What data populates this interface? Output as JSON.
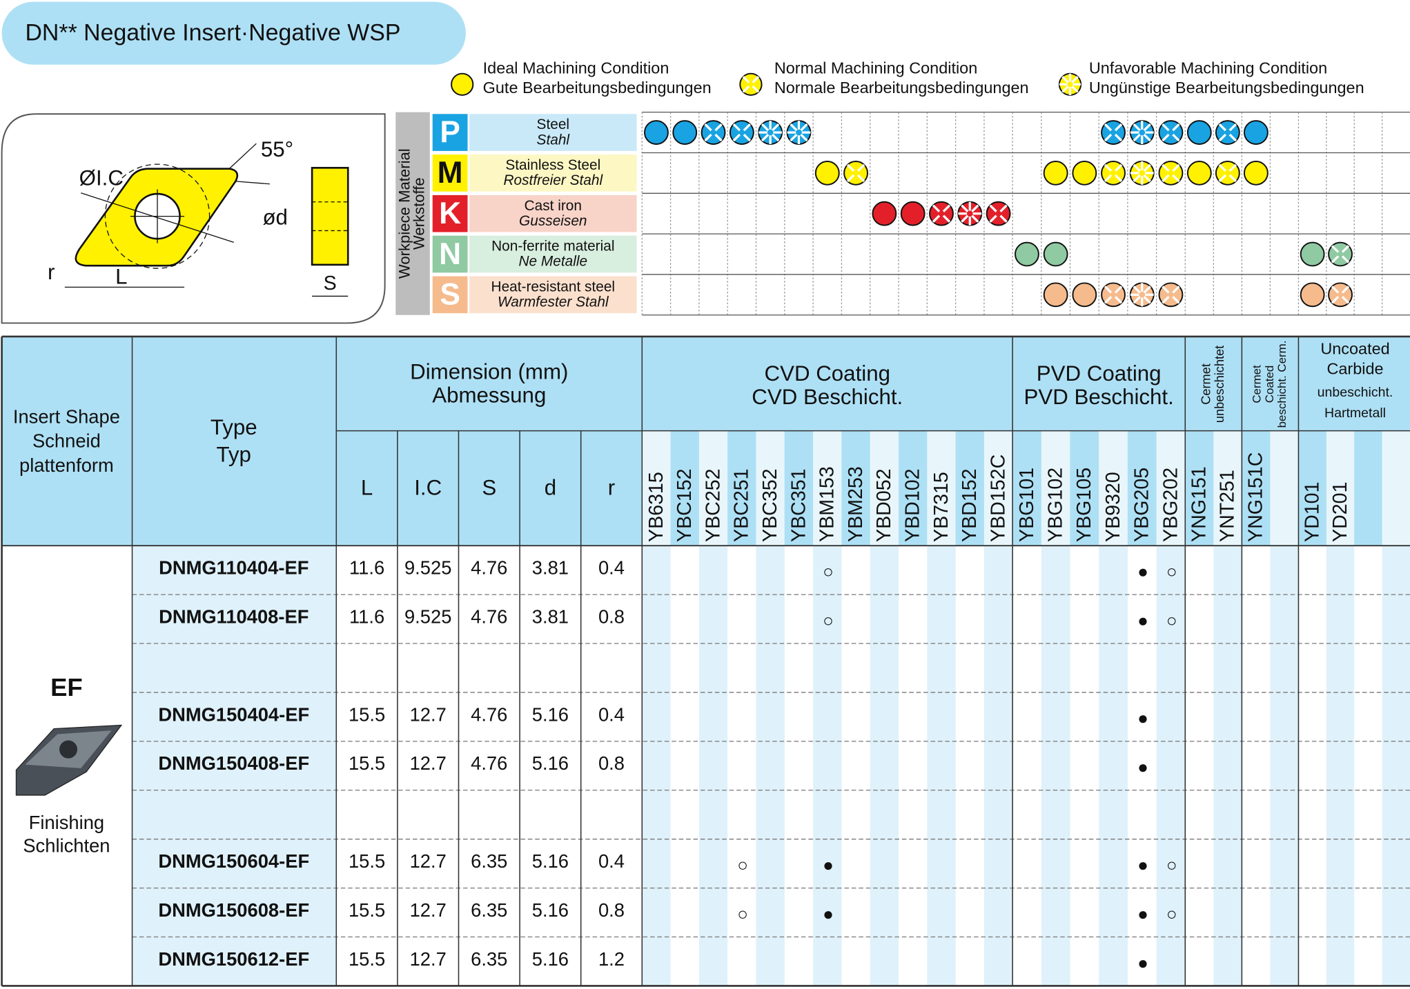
{
  "title": "DN** Negative Insert·Negative WSP",
  "legend": [
    {
      "condition": "ideal",
      "en": "Ideal Machining Condition",
      "de": "Gute Bearbeitungsbedingungen"
    },
    {
      "condition": "normal",
      "en": "Normal Machining Condition",
      "de": "Normale Bearbeitungsbedingungen"
    },
    {
      "condition": "unfavorable",
      "en": "Unfavorable Machining Condition",
      "de": "Ungünstige Bearbeitungsbedingungen"
    }
  ],
  "diagram": {
    "ic": "ØI.C",
    "angle": "55°",
    "d": "ød",
    "r": "r",
    "L": "L",
    "S": "S"
  },
  "material_axis": [
    "Workpiece Material",
    "Werkstoffe"
  ],
  "materials": [
    {
      "letter": "P",
      "en": "Steel",
      "de": "Stahl",
      "color": "#1aa3e2",
      "bg": "#c9e9f8",
      "conditions": [
        "ideal",
        "ideal",
        "normal",
        "normal",
        "unfavorable",
        "unfavorable",
        null,
        null,
        null,
        null,
        null,
        null,
        null,
        null,
        null,
        null,
        "normal",
        "unfavorable",
        "normal",
        "ideal",
        "normal",
        "ideal",
        null,
        null,
        null,
        null,
        null
      ]
    },
    {
      "letter": "M",
      "en": "Stainless Steel",
      "de": "Rostfreier Stahl",
      "color": "#fff100",
      "bg": "#fdf7c4",
      "conditions": [
        null,
        null,
        null,
        null,
        null,
        null,
        "ideal",
        "normal",
        null,
        null,
        null,
        null,
        null,
        null,
        "ideal",
        "ideal",
        "normal",
        "unfavorable",
        "normal",
        "ideal",
        "normal",
        "ideal",
        null,
        null,
        null,
        null,
        null
      ]
    },
    {
      "letter": "K",
      "en": "Cast iron",
      "de": "Gusseisen",
      "color": "#e3202a",
      "bg": "#f8d3c8",
      "conditions": [
        null,
        null,
        null,
        null,
        null,
        null,
        null,
        null,
        "ideal",
        "ideal",
        "normal",
        "unfavorable",
        "normal",
        null,
        null,
        null,
        null,
        null,
        null,
        null,
        null,
        null,
        null,
        null,
        null,
        null,
        null
      ]
    },
    {
      "letter": "N",
      "en": "Non-ferrite material",
      "de": "Ne Metalle",
      "color": "#8fcaa2",
      "bg": "#d8eedf",
      "conditions": [
        null,
        null,
        null,
        null,
        null,
        null,
        null,
        null,
        null,
        null,
        null,
        null,
        null,
        "ideal",
        "ideal",
        null,
        null,
        null,
        null,
        null,
        null,
        null,
        null,
        "ideal",
        "normal",
        null,
        null
      ]
    },
    {
      "letter": "S",
      "en": "Heat-resistant steel",
      "de": "Warmfester Stahl",
      "color": "#f6bb8d",
      "bg": "#fbe0cd",
      "conditions": [
        null,
        null,
        null,
        null,
        null,
        null,
        null,
        null,
        null,
        null,
        null,
        null,
        null,
        null,
        "ideal",
        "ideal",
        "normal",
        "unfavorable",
        "normal",
        null,
        null,
        null,
        null,
        "ideal",
        "normal",
        null,
        null
      ]
    }
  ],
  "table": {
    "headers": {
      "shape": [
        "Insert Shape",
        "Schneid",
        "plattenform"
      ],
      "type": [
        "Type",
        "Typ"
      ],
      "dimension": [
        "Dimension (mm)",
        "Abmessung"
      ],
      "dims": [
        "L",
        "I.C",
        "S",
        "d",
        "r"
      ],
      "groups": [
        [
          "CVD Coating",
          "CVD Beschicht."
        ],
        [
          "PVD Coating",
          "PVD Beschicht."
        ],
        [
          "Cermet",
          "unbeschichtet"
        ],
        [
          "Cermet",
          "Coated",
          "beschicht. Cerm."
        ],
        [
          "Uncoated",
          "Carbide",
          "unbeschicht.",
          "Hartmetall"
        ]
      ]
    },
    "grades": [
      "YB6315",
      "YBC152",
      "YBC252",
      "YBC251",
      "YBC352",
      "YBC351",
      "YBM153",
      "YBM253",
      "YBD052",
      "YBD102",
      "YB7315",
      "YBD152",
      "YBD152C",
      "YBG101",
      "YBG102",
      "YBG105",
      "YB9320",
      "YBG205",
      "YBG202",
      "YNG151",
      "YNT251",
      "YNG151C",
      null,
      "YD101",
      "YD201",
      null,
      null
    ],
    "section": {
      "code": "EF",
      "en": "Finishing",
      "de": "Schlichten"
    },
    "rows": [
      {
        "type": "DNMG110404-EF",
        "dims": [
          11.6,
          9.525,
          4.76,
          3.81,
          0.4
        ],
        "marks": [
          null,
          null,
          null,
          null,
          null,
          null,
          "○",
          null,
          null,
          null,
          null,
          null,
          null,
          null,
          null,
          null,
          null,
          "●",
          "○",
          null,
          null,
          null,
          null,
          null,
          null,
          null,
          null
        ]
      },
      {
        "type": "DNMG110408-EF",
        "dims": [
          11.6,
          9.525,
          4.76,
          3.81,
          0.8
        ],
        "marks": [
          null,
          null,
          null,
          null,
          null,
          null,
          "○",
          null,
          null,
          null,
          null,
          null,
          null,
          null,
          null,
          null,
          null,
          "●",
          "○",
          null,
          null,
          null,
          null,
          null,
          null,
          null,
          null
        ]
      },
      null,
      {
        "type": "DNMG150404-EF",
        "dims": [
          15.5,
          12.7,
          4.76,
          5.16,
          0.4
        ],
        "marks": [
          null,
          null,
          null,
          null,
          null,
          null,
          null,
          null,
          null,
          null,
          null,
          null,
          null,
          null,
          null,
          null,
          null,
          "●",
          null,
          null,
          null,
          null,
          null,
          null,
          null,
          null,
          null
        ]
      },
      {
        "type": "DNMG150408-EF",
        "dims": [
          15.5,
          12.7,
          4.76,
          5.16,
          0.8
        ],
        "marks": [
          null,
          null,
          null,
          null,
          null,
          null,
          null,
          null,
          null,
          null,
          null,
          null,
          null,
          null,
          null,
          null,
          null,
          "●",
          null,
          null,
          null,
          null,
          null,
          null,
          null,
          null,
          null
        ]
      },
      null,
      {
        "type": "DNMG150604-EF",
        "dims": [
          15.5,
          12.7,
          6.35,
          5.16,
          0.4
        ],
        "marks": [
          null,
          null,
          null,
          "○",
          null,
          null,
          "●",
          null,
          null,
          null,
          null,
          null,
          null,
          null,
          null,
          null,
          null,
          "●",
          "○",
          null,
          null,
          null,
          null,
          null,
          null,
          null,
          null
        ]
      },
      {
        "type": "DNMG150608-EF",
        "dims": [
          15.5,
          12.7,
          6.35,
          5.16,
          0.8
        ],
        "marks": [
          null,
          null,
          null,
          "○",
          null,
          null,
          "●",
          null,
          null,
          null,
          null,
          null,
          null,
          null,
          null,
          null,
          null,
          "●",
          "○",
          null,
          null,
          null,
          null,
          null,
          null,
          null,
          null
        ]
      },
      {
        "type": "DNMG150612-EF",
        "dims": [
          15.5,
          12.7,
          6.35,
          5.16,
          1.2
        ],
        "marks": [
          null,
          null,
          null,
          null,
          null,
          null,
          null,
          null,
          null,
          null,
          null,
          null,
          null,
          null,
          null,
          null,
          null,
          "●",
          null,
          null,
          null,
          null,
          null,
          null,
          null,
          null,
          null
        ]
      }
    ]
  }
}
